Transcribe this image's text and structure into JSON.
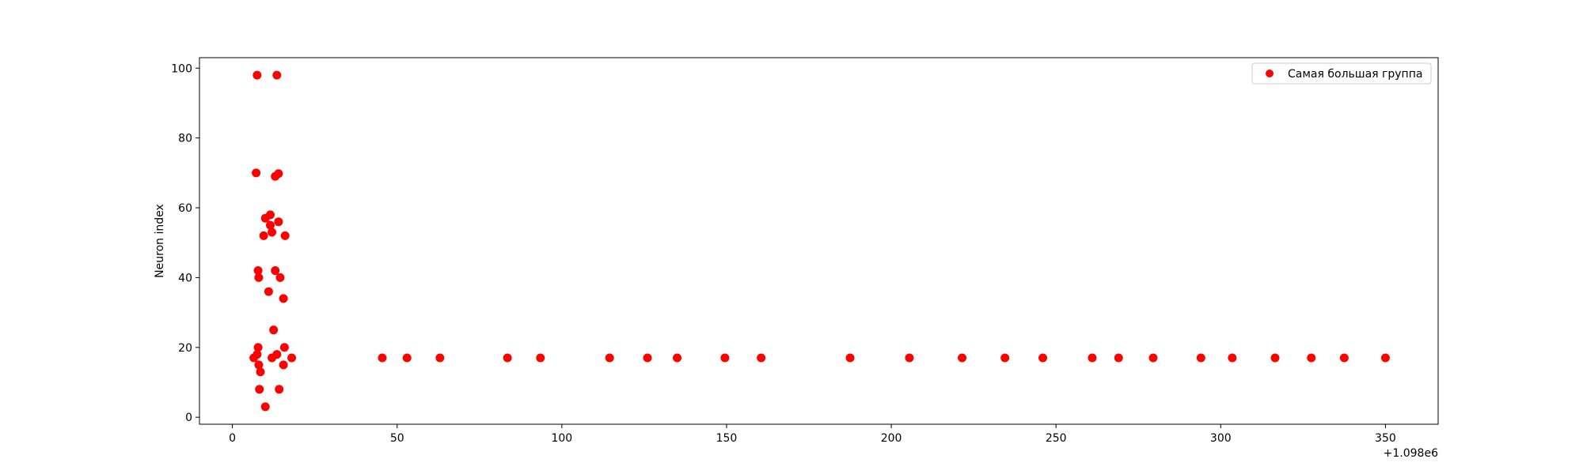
{
  "chart_data": {
    "type": "scatter",
    "title": "",
    "xlabel": "",
    "ylabel": "Neuron index",
    "x_offset_label": "+1.098e6",
    "xlim": [
      -10,
      366
    ],
    "ylim": [
      -2,
      103
    ],
    "xticks": [
      0,
      50,
      100,
      150,
      200,
      250,
      300,
      350
    ],
    "yticks": [
      0,
      20,
      40,
      60,
      80,
      100
    ],
    "grid": false,
    "legend": {
      "position": "top-right"
    },
    "series": [
      {
        "name": "Самая большая группа",
        "color": "#ff0000",
        "points": [
          {
            "x": 7.5,
            "y": 98
          },
          {
            "x": 13.5,
            "y": 98
          },
          {
            "x": 7.2,
            "y": 70
          },
          {
            "x": 13,
            "y": 69
          },
          {
            "x": 14,
            "y": 69.8
          },
          {
            "x": 11.5,
            "y": 58
          },
          {
            "x": 10,
            "y": 57
          },
          {
            "x": 14,
            "y": 56
          },
          {
            "x": 11.5,
            "y": 55
          },
          {
            "x": 12,
            "y": 53
          },
          {
            "x": 9.5,
            "y": 52
          },
          {
            "x": 16,
            "y": 52
          },
          {
            "x": 7.8,
            "y": 42
          },
          {
            "x": 13,
            "y": 42
          },
          {
            "x": 8,
            "y": 40
          },
          {
            "x": 14.5,
            "y": 40
          },
          {
            "x": 11,
            "y": 36
          },
          {
            "x": 15.5,
            "y": 34
          },
          {
            "x": 12.5,
            "y": 25
          },
          {
            "x": 7.8,
            "y": 20
          },
          {
            "x": 15.8,
            "y": 20
          },
          {
            "x": 7.5,
            "y": 18
          },
          {
            "x": 13.5,
            "y": 18
          },
          {
            "x": 6.5,
            "y": 17
          },
          {
            "x": 12,
            "y": 17
          },
          {
            "x": 18,
            "y": 17
          },
          {
            "x": 8,
            "y": 15
          },
          {
            "x": 15.5,
            "y": 15
          },
          {
            "x": 8.5,
            "y": 13
          },
          {
            "x": 8.2,
            "y": 8
          },
          {
            "x": 14.2,
            "y": 8
          },
          {
            "x": 10,
            "y": 3
          },
          {
            "x": 45.5,
            "y": 17
          },
          {
            "x": 53,
            "y": 17
          },
          {
            "x": 63,
            "y": 17
          },
          {
            "x": 83.5,
            "y": 17
          },
          {
            "x": 93.5,
            "y": 17
          },
          {
            "x": 114.5,
            "y": 17
          },
          {
            "x": 126,
            "y": 17
          },
          {
            "x": 135,
            "y": 17
          },
          {
            "x": 149.5,
            "y": 17
          },
          {
            "x": 160.5,
            "y": 17
          },
          {
            "x": 187.5,
            "y": 17
          },
          {
            "x": 205.5,
            "y": 17
          },
          {
            "x": 221.5,
            "y": 17
          },
          {
            "x": 234.5,
            "y": 17
          },
          {
            "x": 246,
            "y": 17
          },
          {
            "x": 261,
            "y": 17
          },
          {
            "x": 269,
            "y": 17
          },
          {
            "x": 279.5,
            "y": 17
          },
          {
            "x": 294,
            "y": 17
          },
          {
            "x": 303.5,
            "y": 17
          },
          {
            "x": 316.5,
            "y": 17
          },
          {
            "x": 327.5,
            "y": 17
          },
          {
            "x": 337.5,
            "y": 17
          },
          {
            "x": 350,
            "y": 17
          }
        ]
      }
    ]
  }
}
